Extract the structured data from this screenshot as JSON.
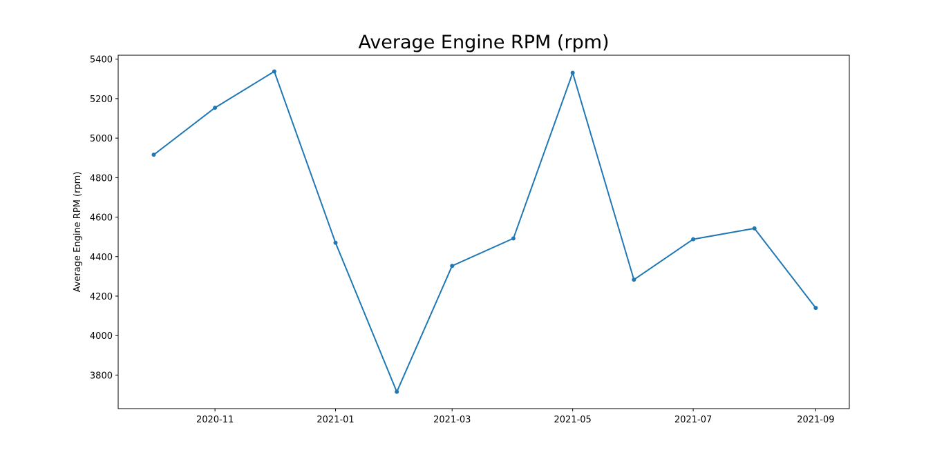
{
  "chart_data": {
    "type": "line",
    "title": "Average Engine RPM (rpm)",
    "xlabel": "",
    "ylabel": "Average Engine RPM (rpm)",
    "x": [
      "2020-10-01",
      "2020-11-01",
      "2020-12-01",
      "2021-01-01",
      "2021-02-01",
      "2021-03-01",
      "2021-04-01",
      "2021-05-01",
      "2021-06-01",
      "2021-07-01",
      "2021-08-01",
      "2021-09-01"
    ],
    "series": [
      {
        "values": [
          4916,
          5154,
          5338,
          4470,
          3715,
          4353,
          4492,
          5331,
          4283,
          4488,
          4543,
          4140
        ],
        "color": "#1f77b4"
      }
    ],
    "xticks": [
      "2020-11",
      "2021-01",
      "2021-03",
      "2021-05",
      "2021-07",
      "2021-09"
    ],
    "yticks": [
      3800,
      4000,
      4200,
      4400,
      4600,
      4800,
      5000,
      5200,
      5400
    ],
    "ylim": [
      3630,
      5420
    ],
    "xlim": [
      "2020-09-13",
      "2021-09-18"
    ],
    "grid": false,
    "marker": "dot"
  }
}
